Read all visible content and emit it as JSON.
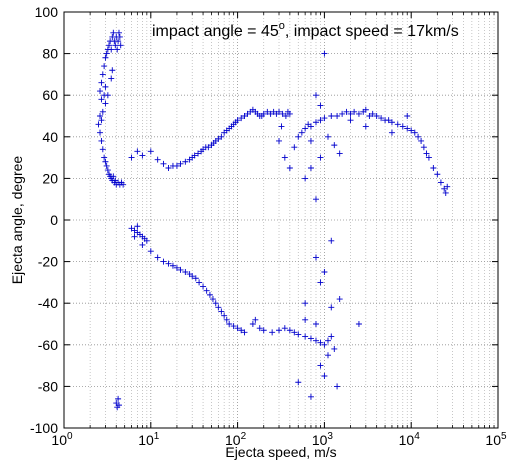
{
  "chart_data": {
    "type": "scatter",
    "title": "",
    "annotation": {
      "prefix": "impact angle = 45",
      "degree": "o",
      "suffix": ", impact speed = 17km/s"
    },
    "xlabel": "Ejecta speed, m/s",
    "ylabel": "Ejecta angle, degree",
    "xscale": "log",
    "xlim": [
      1,
      100000
    ],
    "ylim": [
      -100,
      100
    ],
    "grid": {
      "x": "dotted",
      "y": "dotted"
    },
    "marker": "+",
    "color": "#0000cc",
    "x_ticks": [
      {
        "base": "10",
        "exp": "0",
        "value": 1
      },
      {
        "base": "10",
        "exp": "1",
        "value": 10
      },
      {
        "base": "10",
        "exp": "2",
        "value": 100
      },
      {
        "base": "10",
        "exp": "3",
        "value": 1000
      },
      {
        "base": "10",
        "exp": "4",
        "value": 10000
      },
      {
        "base": "10",
        "exp": "5",
        "value": 100000
      }
    ],
    "y_ticks": [
      {
        "label": "100",
        "value": 100
      },
      {
        "label": "80",
        "value": 80
      },
      {
        "label": "60",
        "value": 60
      },
      {
        "label": "40",
        "value": 40
      },
      {
        "label": "20",
        "value": 20
      },
      {
        "label": "0",
        "value": 0
      },
      {
        "label": "-20",
        "value": -20
      },
      {
        "label": "-40",
        "value": -40
      },
      {
        "label": "-60",
        "value": -60
      },
      {
        "label": "-80",
        "value": -80
      },
      {
        "label": "-100",
        "value": -100
      }
    ],
    "series": [
      {
        "points": [
          [
            2.6,
            62
          ],
          [
            2.7,
            66
          ],
          [
            2.7,
            58
          ],
          [
            2.8,
            70
          ],
          [
            2.9,
            60
          ],
          [
            2.9,
            74
          ],
          [
            3.0,
            78
          ],
          [
            3.0,
            64
          ],
          [
            3.1,
            80
          ],
          [
            3.2,
            82
          ],
          [
            3.3,
            84
          ],
          [
            3.4,
            86
          ],
          [
            3.5,
            82
          ],
          [
            3.6,
            88
          ],
          [
            3.7,
            90
          ],
          [
            3.8,
            86
          ],
          [
            3.9,
            84
          ],
          [
            4.0,
            88
          ],
          [
            4.1,
            82
          ],
          [
            4.2,
            86
          ],
          [
            4.3,
            90
          ],
          [
            4.4,
            88
          ],
          [
            4.5,
            84
          ],
          [
            3.6,
            72
          ],
          [
            3.5,
            68
          ],
          [
            3.2,
            60
          ],
          [
            3.0,
            56
          ],
          [
            2.8,
            52
          ],
          [
            2.7,
            48
          ],
          [
            2.6,
            50
          ],
          [
            2.5,
            46
          ],
          [
            2.6,
            42
          ],
          [
            2.7,
            38
          ],
          [
            2.8,
            34
          ],
          [
            2.9,
            30
          ],
          [
            3.0,
            28
          ],
          [
            3.1,
            26
          ],
          [
            3.2,
            24
          ],
          [
            3.3,
            22
          ],
          [
            3.4,
            21
          ],
          [
            3.5,
            20
          ],
          [
            3.6,
            19
          ],
          [
            3.8,
            18
          ],
          [
            4.0,
            17
          ],
          [
            4.2,
            18
          ],
          [
            4.4,
            17
          ],
          [
            4.6,
            18
          ],
          [
            4.8,
            17
          ],
          [
            3.9,
            19
          ],
          [
            3.7,
            21
          ]
        ]
      },
      {
        "points": [
          [
            6,
            30
          ],
          [
            7,
            33
          ],
          [
            8,
            31
          ],
          [
            10,
            33
          ],
          [
            12,
            29
          ],
          [
            14,
            27
          ],
          [
            16,
            25
          ],
          [
            18,
            26
          ],
          [
            20,
            26
          ],
          [
            22,
            27
          ],
          [
            25,
            28
          ],
          [
            28,
            29
          ],
          [
            30,
            30
          ],
          [
            32,
            31
          ],
          [
            35,
            32
          ],
          [
            38,
            33
          ],
          [
            40,
            34
          ],
          [
            43,
            35
          ],
          [
            46,
            35
          ],
          [
            50,
            36
          ],
          [
            53,
            37
          ],
          [
            56,
            38
          ],
          [
            60,
            39
          ],
          [
            65,
            40
          ],
          [
            70,
            42
          ],
          [
            75,
            43
          ],
          [
            80,
            44
          ],
          [
            85,
            45
          ],
          [
            90,
            46
          ],
          [
            95,
            47
          ],
          [
            100,
            48
          ],
          [
            110,
            49
          ],
          [
            120,
            50
          ],
          [
            130,
            51
          ],
          [
            140,
            52
          ],
          [
            150,
            53
          ],
          [
            160,
            52
          ],
          [
            170,
            51
          ],
          [
            180,
            50
          ],
          [
            190,
            50
          ],
          [
            200,
            51
          ],
          [
            220,
            52
          ],
          [
            240,
            51
          ],
          [
            260,
            52
          ],
          [
            280,
            51
          ],
          [
            300,
            52
          ],
          [
            330,
            51
          ],
          [
            360,
            50
          ],
          [
            380,
            52
          ],
          [
            400,
            51
          ]
        ]
      },
      {
        "points": [
          [
            500,
            40
          ],
          [
            550,
            42
          ],
          [
            600,
            44
          ],
          [
            650,
            46
          ],
          [
            700,
            45
          ],
          [
            800,
            47
          ],
          [
            900,
            48
          ],
          [
            1000,
            49
          ],
          [
            1200,
            50
          ],
          [
            1400,
            50
          ],
          [
            1600,
            51
          ],
          [
            1800,
            52
          ],
          [
            2000,
            51
          ],
          [
            2200,
            52
          ],
          [
            2500,
            51
          ],
          [
            2800,
            52
          ],
          [
            3000,
            53
          ],
          [
            3300,
            50
          ],
          [
            3600,
            51
          ],
          [
            4000,
            50
          ],
          [
            4500,
            49
          ],
          [
            5000,
            48
          ],
          [
            5500,
            48
          ],
          [
            6000,
            47
          ],
          [
            7000,
            46
          ],
          [
            8000,
            45
          ],
          [
            9000,
            44
          ],
          [
            10000,
            43
          ],
          [
            11000,
            42
          ],
          [
            12000,
            40
          ],
          [
            13000,
            38
          ],
          [
            14000,
            35
          ],
          [
            15000,
            32
          ],
          [
            16000,
            30
          ],
          [
            18000,
            25
          ],
          [
            20000,
            22
          ],
          [
            22000,
            18
          ],
          [
            24000,
            15
          ],
          [
            25000,
            13
          ],
          [
            26000,
            16
          ],
          [
            1100,
            40
          ],
          [
            1300,
            36
          ],
          [
            1500,
            32
          ],
          [
            900,
            30
          ],
          [
            700,
            25
          ],
          [
            600,
            20
          ],
          [
            800,
            10
          ],
          [
            450,
            35
          ],
          [
            350,
            30
          ],
          [
            400,
            25
          ],
          [
            300,
            38
          ],
          [
            320,
            45
          ],
          [
            900,
            55
          ],
          [
            800,
            60
          ],
          [
            1000,
            80
          ],
          [
            2000,
            48
          ],
          [
            6000,
            42
          ],
          [
            9000,
            50
          ],
          [
            3000,
            45
          ],
          [
            700,
            38
          ]
        ]
      },
      {
        "points": [
          [
            6,
            -4
          ],
          [
            6.5,
            -5
          ],
          [
            7,
            -6
          ],
          [
            7.5,
            -7
          ],
          [
            8,
            -8
          ],
          [
            8.5,
            -9
          ],
          [
            9,
            -10
          ],
          [
            7,
            -3
          ],
          [
            6.5,
            -8
          ],
          [
            8,
            -12
          ],
          [
            10,
            -15
          ],
          [
            12,
            -18
          ],
          [
            14,
            -20
          ],
          [
            16,
            -21
          ],
          [
            18,
            -22
          ],
          [
            20,
            -23
          ],
          [
            22,
            -24
          ],
          [
            25,
            -25
          ],
          [
            28,
            -26
          ],
          [
            30,
            -27
          ],
          [
            33,
            -28
          ],
          [
            36,
            -30
          ],
          [
            40,
            -32
          ],
          [
            44,
            -34
          ],
          [
            48,
            -36
          ],
          [
            52,
            -38
          ],
          [
            56,
            -40
          ],
          [
            60,
            -42
          ],
          [
            65,
            -44
          ],
          [
            70,
            -46
          ],
          [
            75,
            -48
          ],
          [
            80,
            -50
          ],
          [
            90,
            -51
          ],
          [
            100,
            -52
          ],
          [
            110,
            -53
          ],
          [
            120,
            -54
          ],
          [
            150,
            -50
          ],
          [
            160,
            -48
          ],
          [
            180,
            -52
          ],
          [
            200,
            -53
          ],
          [
            250,
            -54
          ],
          [
            300,
            -53
          ],
          [
            350,
            -52
          ],
          [
            400,
            -53
          ],
          [
            450,
            -54
          ],
          [
            500,
            -55
          ],
          [
            600,
            -56
          ],
          [
            700,
            -57
          ],
          [
            800,
            -58
          ],
          [
            900,
            -59
          ],
          [
            1000,
            -60
          ],
          [
            1100,
            -58
          ],
          [
            1200,
            -56
          ],
          [
            800,
            -50
          ],
          [
            600,
            -48
          ],
          [
            1300,
            -62
          ],
          [
            900,
            -70
          ],
          [
            1000,
            -75
          ],
          [
            1100,
            -65
          ],
          [
            1400,
            -80
          ],
          [
            700,
            -85
          ],
          [
            500,
            -78
          ],
          [
            600,
            -40
          ],
          [
            1200,
            -42
          ],
          [
            2500,
            -50
          ],
          [
            1500,
            -38
          ],
          [
            900,
            -30
          ],
          [
            1000,
            -25
          ],
          [
            800,
            -18
          ],
          [
            1200,
            -10
          ],
          [
            4,
            -88
          ],
          [
            4.1,
            -90
          ],
          [
            4.2,
            -86
          ],
          [
            4.3,
            -89
          ]
        ]
      }
    ]
  }
}
